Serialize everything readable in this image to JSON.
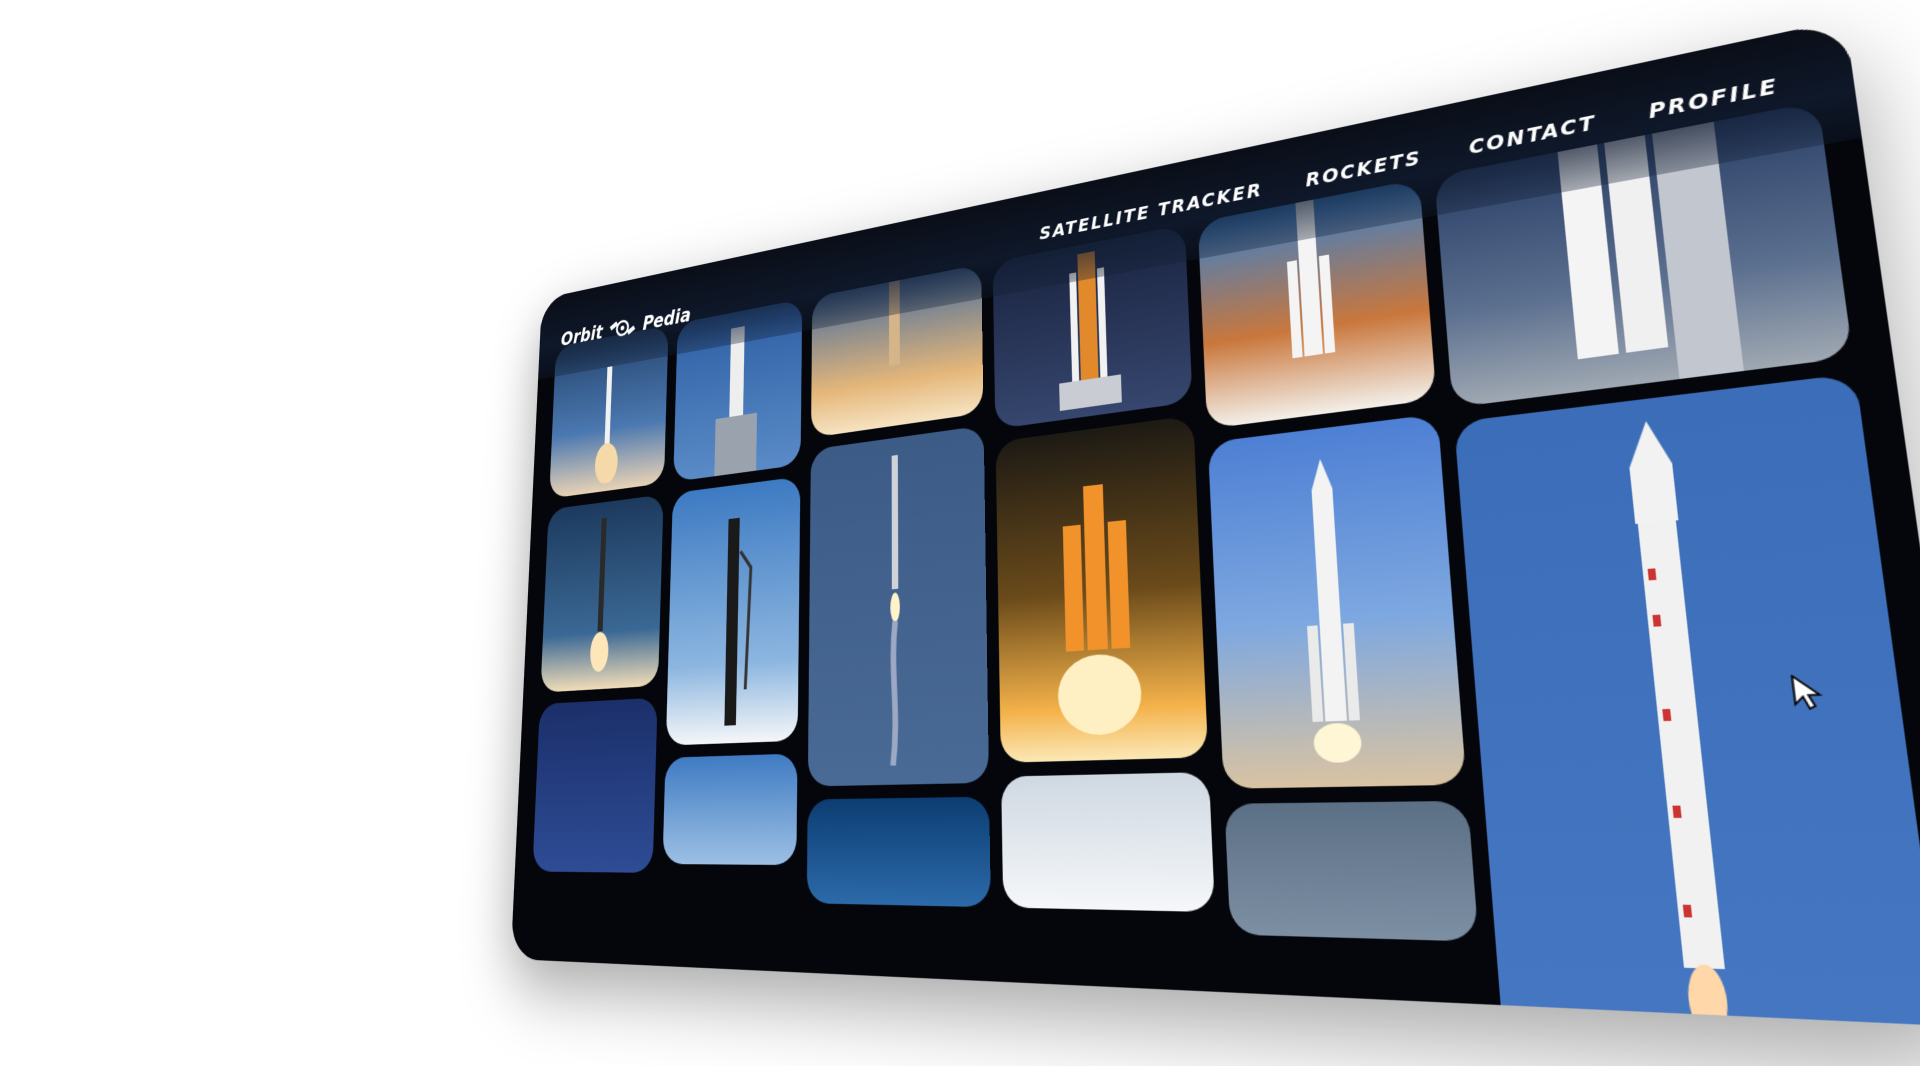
{
  "brand": {
    "left": "Orbit",
    "right": "Pedia"
  },
  "nav": [
    {
      "label": "SATELLITE TRACKER"
    },
    {
      "label": "ROCKETS"
    },
    {
      "label": "CONTACT"
    },
    {
      "label": "PROFILE"
    }
  ],
  "icons": {
    "logo": "satellite-icon",
    "cursor": "pointer-cursor-icon"
  },
  "colors": {
    "background": "#04060b",
    "nav_text": "#ffffff",
    "sky_blue": "#3b6fb6",
    "flame": "#f2a23a"
  },
  "gallery": [
    {
      "tiles": [
        "rocket-launch-photo",
        "rocket-launch-photo",
        "rocket-launch-photo"
      ]
    },
    {
      "tiles": [
        "rocket-pad-photo",
        "rocket-launch-photo",
        "rocket-pad-photo"
      ]
    },
    {
      "tiles": [
        "rocket-launch-photo",
        "rocket-launch-photo",
        "rocket-pad-photo"
      ]
    },
    {
      "tiles": [
        "rocket-pad-photo",
        "rocket-launch-photo",
        "rocket-pad-photo"
      ]
    },
    {
      "tiles": [
        "rocket-launch-photo",
        "rocket-launch-photo",
        "rocket-photo"
      ]
    },
    {
      "tiles": [
        "rocket-pad-photo",
        "rocket-launch-photo"
      ]
    }
  ]
}
